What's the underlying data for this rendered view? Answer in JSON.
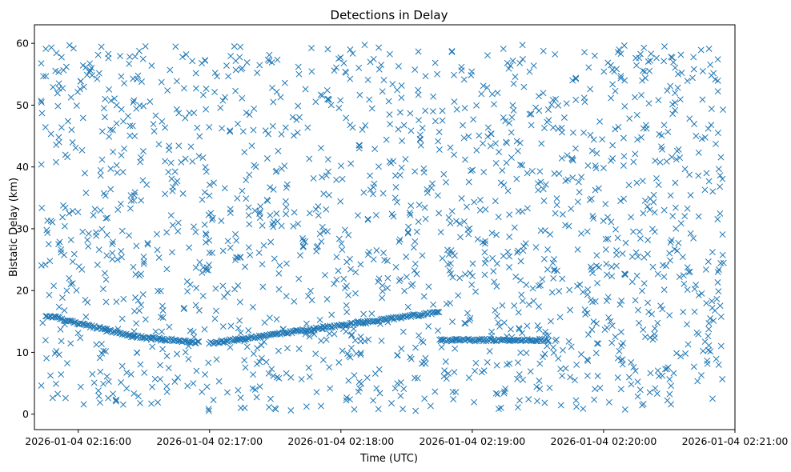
{
  "chart_data": {
    "type": "scatter",
    "title": "Detections in Delay",
    "xlabel": "Time (UTC)",
    "ylabel": "Bistatic Delay (km)",
    "marker": "x",
    "color": "#1f77b4",
    "grid": false,
    "xlim": [
      "2026-01-04 02:15:40",
      "2026-01-04 02:21:00"
    ],
    "ylim": [
      -2.5,
      63
    ],
    "x_ticks": [
      "2026-01-04 02:16:00",
      "2026-01-04 02:17:00",
      "2026-01-04 02:18:00",
      "2026-01-04 02:19:00",
      "2026-01-04 02:20:00",
      "2026-01-04 02:21:00"
    ],
    "y_ticks": [
      0,
      10,
      20,
      30,
      40,
      50,
      60
    ],
    "data_range": {
      "x": [
        "2026-01-04 02:15:43",
        "2026-01-04 02:20:55"
      ],
      "y": [
        0.5,
        59.8
      ]
    },
    "track_segments": [
      {
        "from": [
          "2026-01-04 02:15:45",
          16.0
        ],
        "to": [
          "2026-01-04 02:16:25",
          12.6
        ]
      },
      {
        "from": [
          "2026-01-04 02:16:25",
          12.6
        ],
        "to": [
          "2026-01-04 02:16:55",
          11.6
        ]
      },
      {
        "from": [
          "2026-01-04 02:17:00",
          11.5
        ],
        "to": [
          "2026-01-04 02:18:45",
          16.5
        ]
      },
      {
        "from": [
          "2026-01-04 02:18:45",
          12.0
        ],
        "to": [
          "2026-01-04 02:19:35",
          12.0
        ]
      }
    ]
  }
}
